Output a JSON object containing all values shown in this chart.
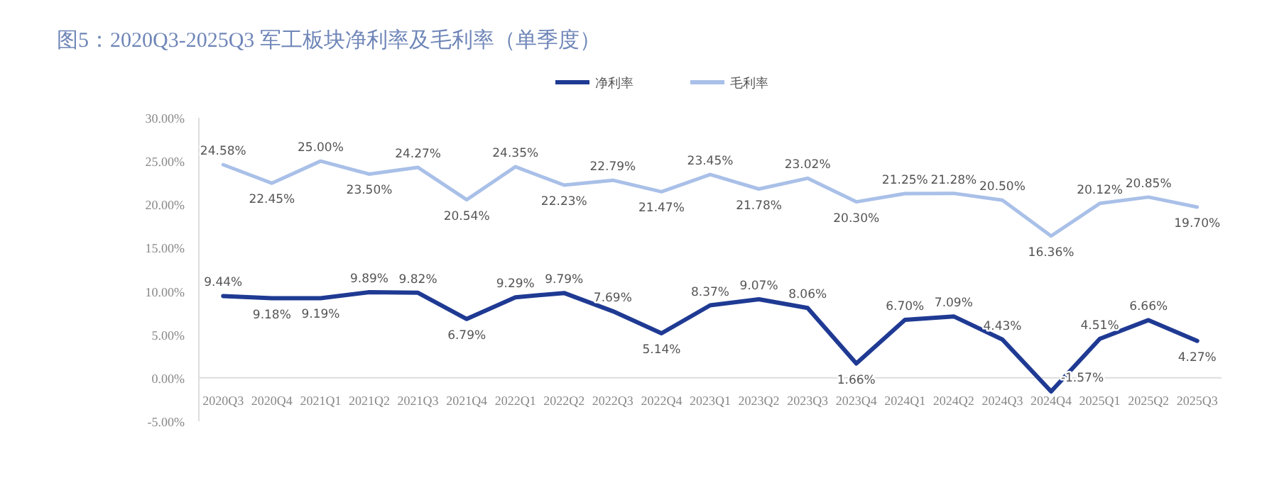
{
  "chart_data": {
    "type": "line",
    "title": "图5：2020Q3-2025Q3 军工板块净利率及毛利率（单季度）",
    "categories": [
      "2020Q3",
      "2020Q4",
      "2021Q1",
      "2021Q2",
      "2021Q3",
      "2021Q4",
      "2022Q1",
      "2022Q2",
      "2022Q3",
      "2022Q4",
      "2023Q1",
      "2023Q2",
      "2023Q3",
      "2023Q4",
      "2024Q1",
      "2024Q2",
      "2024Q3",
      "2024Q4",
      "2025Q1",
      "2025Q2",
      "2025Q3"
    ],
    "series": [
      {
        "name": "净利率",
        "color": "#1f3a93",
        "values": [
          9.44,
          9.18,
          9.19,
          9.89,
          9.82,
          6.79,
          9.29,
          9.79,
          7.69,
          5.14,
          8.37,
          9.07,
          8.06,
          1.66,
          6.7,
          7.09,
          4.43,
          -1.57,
          4.51,
          6.66,
          4.27
        ],
        "value_labels": [
          "9.44%",
          "9.18%",
          "9.19%",
          "9.89%",
          "9.82%",
          "6.79%",
          "9.29%",
          "9.79%",
          "7.69%",
          "5.14%",
          "8.37%",
          "9.07%",
          "8.06%",
          "1.66%",
          "6.70%",
          "7.09%",
          "4.43%",
          "-1.57%",
          "4.51%",
          "6.66%",
          "4.27%"
        ]
      },
      {
        "name": "毛利率",
        "color": "#a9c0e8",
        "values": [
          24.58,
          22.45,
          25.0,
          23.5,
          24.27,
          20.54,
          24.35,
          22.23,
          22.79,
          21.47,
          23.45,
          21.78,
          23.02,
          20.3,
          21.25,
          21.28,
          20.5,
          16.36,
          20.12,
          20.85,
          19.7
        ],
        "value_labels": [
          "24.58%",
          "22.45%",
          "25.00%",
          "23.50%",
          "24.27%",
          "20.54%",
          "24.35%",
          "22.23%",
          "22.79%",
          "21.47%",
          "23.45%",
          "21.78%",
          "23.02%",
          "20.30%",
          "21.25%",
          "21.28%",
          "20.50%",
          "16.36%",
          "20.12%",
          "20.85%",
          "19.70%"
        ]
      }
    ],
    "ylim": [
      -5,
      30
    ],
    "yticks": [
      {
        "value": -5,
        "label": "-5.00%"
      },
      {
        "value": 0,
        "label": "0.00%"
      },
      {
        "value": 5,
        "label": "5.00%"
      },
      {
        "value": 10,
        "label": "10.00%"
      },
      {
        "value": 15,
        "label": "15.00%"
      },
      {
        "value": 20,
        "label": "20.00%"
      },
      {
        "value": 25,
        "label": "25.00%"
      },
      {
        "value": 30,
        "label": "30.00%"
      }
    ],
    "grid": false,
    "legend": "top",
    "marker": "none",
    "line_style": "solid"
  }
}
